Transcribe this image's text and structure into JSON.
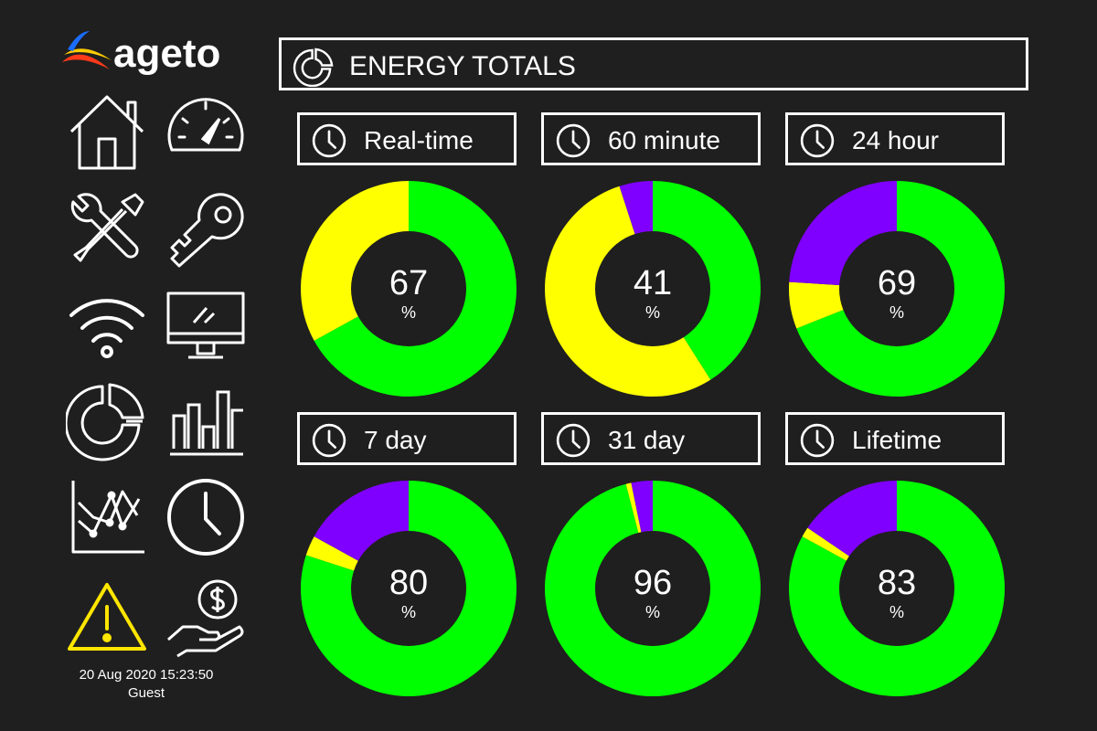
{
  "brand": {
    "name": "ageto"
  },
  "title": "ENERGY TOTALS",
  "nav": {
    "items": [
      {
        "name": "home-icon"
      },
      {
        "name": "speedometer-icon"
      },
      {
        "name": "tools-icon"
      },
      {
        "name": "key-icon"
      },
      {
        "name": "wifi-icon"
      },
      {
        "name": "monitor-icon"
      },
      {
        "name": "pie-chart-icon"
      },
      {
        "name": "bar-chart-icon"
      },
      {
        "name": "line-chart-icon"
      },
      {
        "name": "clock-icon"
      },
      {
        "name": "warning-icon"
      },
      {
        "name": "money-hand-icon"
      }
    ]
  },
  "footer": {
    "datetime": "20 Aug 2020 15:23:50",
    "user": "Guest"
  },
  "colors": {
    "green": "#00ff00",
    "yellow": "#ffff00",
    "purple": "#8000ff",
    "warning": "#ffe600",
    "background": "#1f1f1f"
  },
  "chart_data": [
    {
      "type": "pie",
      "title": "Real-time",
      "center_value": "67",
      "unit": "%",
      "slices": [
        {
          "label": "green",
          "value": 67
        },
        {
          "label": "yellow",
          "value": 33
        },
        {
          "label": "purple",
          "value": 0
        }
      ]
    },
    {
      "type": "pie",
      "title": "60 minute",
      "center_value": "41",
      "unit": "%",
      "slices": [
        {
          "label": "green",
          "value": 41
        },
        {
          "label": "yellow",
          "value": 54
        },
        {
          "label": "purple",
          "value": 5
        }
      ]
    },
    {
      "type": "pie",
      "title": "24 hour",
      "center_value": "69",
      "unit": "%",
      "slices": [
        {
          "label": "green",
          "value": 69
        },
        {
          "label": "yellow",
          "value": 7
        },
        {
          "label": "purple",
          "value": 24
        }
      ]
    },
    {
      "type": "pie",
      "title": "7 day",
      "center_value": "80",
      "unit": "%",
      "slices": [
        {
          "label": "green",
          "value": 80
        },
        {
          "label": "yellow",
          "value": 3
        },
        {
          "label": "purple",
          "value": 17
        }
      ]
    },
    {
      "type": "pie",
      "title": "31 day",
      "center_value": "96",
      "unit": "%",
      "slices": [
        {
          "label": "green",
          "value": 96
        },
        {
          "label": "yellow",
          "value": 0.8
        },
        {
          "label": "purple",
          "value": 3.2
        }
      ]
    },
    {
      "type": "pie",
      "title": "Lifetime",
      "center_value": "83",
      "unit": "%",
      "slices": [
        {
          "label": "green",
          "value": 83
        },
        {
          "label": "yellow",
          "value": 1.5
        },
        {
          "label": "purple",
          "value": 15.5
        }
      ]
    }
  ]
}
